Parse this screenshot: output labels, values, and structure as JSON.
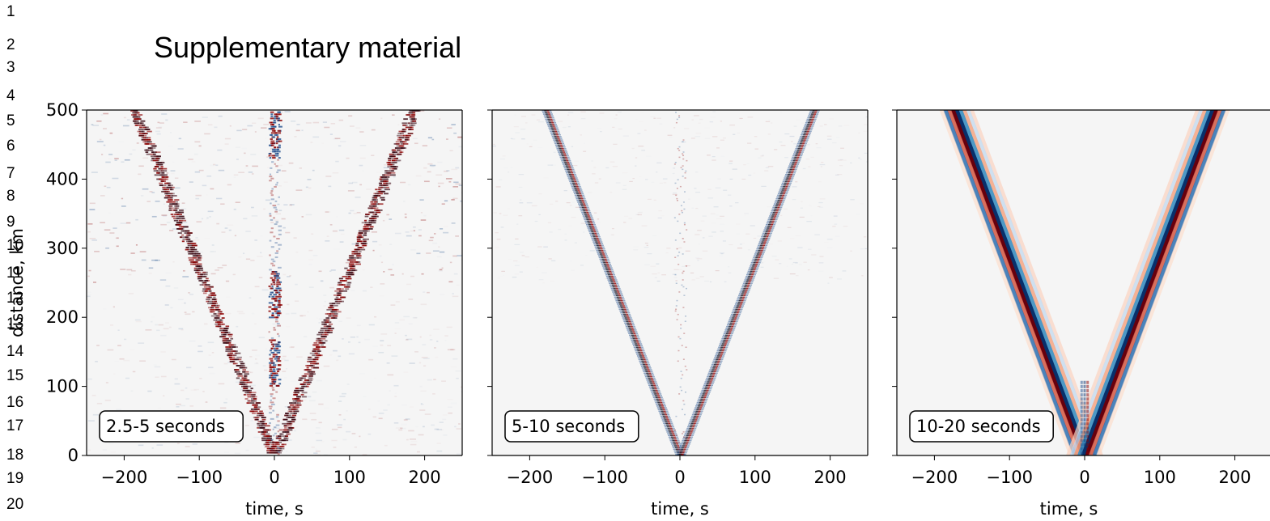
{
  "document": {
    "line_numbers": [
      "1",
      "2",
      "3",
      "4",
      "5",
      "6",
      "7",
      "8",
      "9",
      "10",
      "11",
      "12",
      "13",
      "14",
      "15",
      "16",
      "17",
      "18",
      "19",
      "20"
    ],
    "title": "Supplementary material"
  },
  "chart_data": [
    {
      "type": "heatmap",
      "description_label": "2.5-5 seconds",
      "xlabel": "time, s",
      "ylabel": "distance, km",
      "xlim": [
        -250,
        250
      ],
      "ylim": [
        0,
        500
      ],
      "xticks": [
        -200,
        -100,
        0,
        100,
        200
      ],
      "yticks": [
        0,
        100,
        200,
        300,
        400,
        500
      ],
      "xtick_labels": [
        "−200",
        "−100",
        "0",
        "100",
        "200"
      ],
      "ytick_labels": [
        "0",
        "100",
        "200",
        "300",
        "400",
        "500"
      ],
      "moveout_velocity_km_s": 2.7,
      "colors": {
        "positive": "#8b0000",
        "negative": "#1f4e8c",
        "background": "#f5f5f5"
      }
    },
    {
      "type": "heatmap",
      "description_label": "5-10 seconds",
      "xlabel": "time, s",
      "ylabel": "",
      "xlim": [
        -250,
        250
      ],
      "ylim": [
        0,
        500
      ],
      "xticks": [
        -200,
        -100,
        0,
        100,
        200
      ],
      "yticks": [
        0,
        100,
        200,
        300,
        400,
        500
      ],
      "xtick_labels": [
        "−200",
        "−100",
        "0",
        "100",
        "200"
      ],
      "ytick_labels": [],
      "moveout_velocity_km_s": 2.8,
      "colors": {
        "positive": "#8b0000",
        "negative": "#1f4e8c",
        "background": "#f5f5f5"
      }
    },
    {
      "type": "heatmap",
      "description_label": "10-20 seconds",
      "xlabel": "time, s",
      "ylabel": "",
      "xlim": [
        -250,
        250
      ],
      "ylim": [
        0,
        500
      ],
      "xticks": [
        -200,
        -100,
        0,
        100,
        200
      ],
      "yticks": [
        0,
        100,
        200,
        300,
        400,
        500
      ],
      "xtick_labels": [
        "−200",
        "−100",
        "0",
        "100",
        "200"
      ],
      "ytick_labels": [],
      "moveout_velocity_km_s": 2.9,
      "colors": {
        "positive": "#8b0000",
        "negative": "#1f4e8c",
        "background": "#f5f5f5"
      }
    }
  ]
}
